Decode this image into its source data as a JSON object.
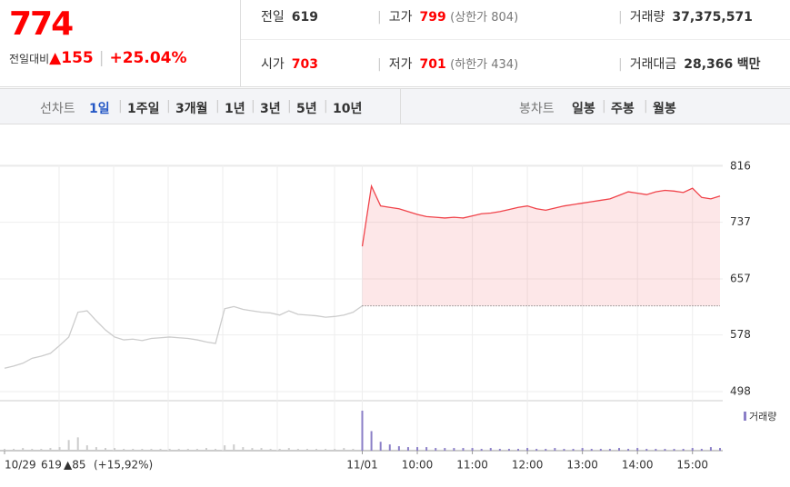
{
  "header": {
    "price": "774",
    "change_label": "전일대비",
    "change": "▲155",
    "change_pct": "+25.04%",
    "info": [
      {
        "label": "전일",
        "value": "619"
      },
      {
        "label": "고가",
        "value": "799",
        "note": "(상한가 804)"
      },
      {
        "label": "거래량",
        "value": "37,375,571"
      },
      {
        "label": "시가",
        "value": "703"
      },
      {
        "label": "저가",
        "value": "701",
        "note": "(하한가 434)"
      },
      {
        "label": "거래대금",
        "value": "28,366",
        "unit": "백만"
      }
    ]
  },
  "line_tabs": {
    "label": "선차트",
    "items": [
      "1일",
      "1주일",
      "3개월",
      "1년",
      "3년",
      "5년",
      "10년"
    ]
  },
  "candle_tabs": {
    "label": "봉차트",
    "items": [
      "일봉",
      "주봉",
      "월봉"
    ]
  },
  "chart_data": {
    "type": "line",
    "xlim": [
      0,
      780
    ],
    "ylim": [
      498,
      816
    ],
    "yticks": [
      498,
      578,
      657,
      737,
      816
    ],
    "xticks": [
      {
        "value": 0,
        "label": "10/29"
      },
      {
        "value": 390,
        "label": "11/01"
      },
      {
        "value": 450,
        "label": "10:00"
      },
      {
        "value": 510,
        "label": "11:00"
      },
      {
        "value": 570,
        "label": "12:00"
      },
      {
        "value": 630,
        "label": "13:00"
      },
      {
        "value": 690,
        "label": "14:00"
      },
      {
        "value": 750,
        "label": "15:00"
      }
    ],
    "prev_close": 619,
    "prev_change": "▲85",
    "prev_change_pct": "(+15,92%)",
    "volume_label": "거래량",
    "grid": true,
    "series": [
      {
        "color": "#cccccc",
        "fill": false,
        "x": [
          0,
          10,
          20,
          30,
          40,
          50,
          60,
          70,
          80,
          90,
          100,
          110,
          120,
          130,
          140,
          150,
          160,
          170,
          180,
          190,
          200,
          210,
          220,
          230,
          240,
          250,
          260,
          270,
          280,
          290,
          300,
          310,
          320,
          330,
          340,
          350,
          360,
          370,
          380,
          390
        ],
        "values": [
          531,
          534,
          538,
          545,
          548,
          552,
          563,
          575,
          610,
          612,
          598,
          585,
          575,
          571,
          572,
          570,
          573,
          574,
          575,
          574,
          573,
          571,
          568,
          566,
          615,
          618,
          614,
          612,
          610,
          609,
          606,
          612,
          607,
          606,
          605,
          603,
          604,
          606,
          610,
          619
        ],
        "volume": [
          2,
          2,
          3,
          2,
          2,
          3,
          4,
          12,
          15,
          6,
          4,
          3,
          3,
          2,
          2,
          2,
          2,
          2,
          2,
          2,
          2,
          2,
          3,
          2,
          6,
          7,
          4,
          3,
          3,
          2,
          2,
          3,
          2,
          2,
          2,
          2,
          2,
          3,
          2,
          3
        ]
      },
      {
        "color": "#f0434a",
        "fill": true,
        "x": [
          390,
          400,
          410,
          420,
          430,
          440,
          450,
          460,
          470,
          480,
          490,
          500,
          510,
          520,
          530,
          540,
          550,
          560,
          570,
          580,
          590,
          600,
          610,
          620,
          630,
          640,
          650,
          660,
          670,
          680,
          690,
          700,
          710,
          720,
          730,
          740,
          750,
          760,
          770,
          780
        ],
        "values": [
          703,
          788,
          760,
          758,
          756,
          752,
          748,
          745,
          744,
          743,
          744,
          743,
          746,
          749,
          750,
          752,
          755,
          758,
          760,
          756,
          754,
          757,
          760,
          762,
          764,
          766,
          768,
          770,
          775,
          780,
          778,
          776,
          780,
          782,
          781,
          779,
          785,
          772,
          770,
          774
        ],
        "volume": [
          45,
          22,
          10,
          7,
          5,
          4,
          4,
          4,
          3,
          3,
          3,
          3,
          3,
          2,
          3,
          2,
          2,
          2,
          3,
          2,
          2,
          3,
          2,
          2,
          3,
          2,
          2,
          2,
          3,
          2,
          3,
          2,
          2,
          2,
          2,
          2,
          3,
          2,
          4,
          3
        ]
      }
    ]
  }
}
